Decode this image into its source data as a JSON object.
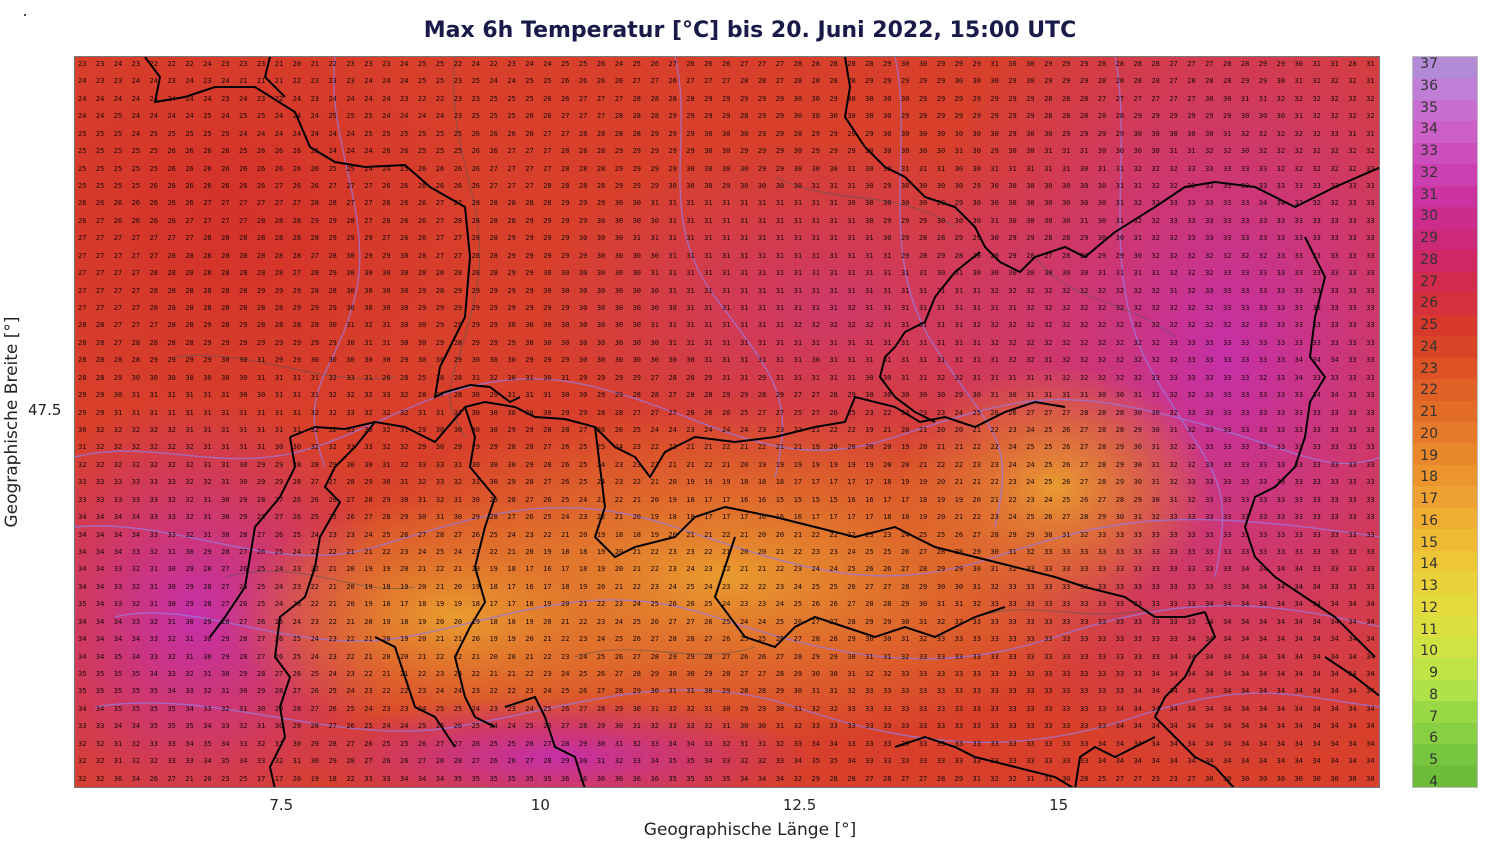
{
  "title": "Max 6h Temperatur [°C] bis 20. Juni 2022, 15:00 UTC",
  "x_axis": {
    "label": "Geographische Länge [°]",
    "ticks": [
      "7.5",
      "10",
      "12.5",
      "15"
    ],
    "tick_values": [
      7.5,
      10,
      12.5,
      15
    ],
    "range": [
      5.5,
      18.1
    ]
  },
  "y_axis": {
    "label": "Geographische Breite [°]",
    "ticks": [
      "47.5"
    ],
    "tick_values": [
      47.5
    ]
  },
  "colorbar": {
    "labels": [
      "37",
      "36",
      "35",
      "34",
      "33",
      "32",
      "31",
      "30",
      "29",
      "28",
      "27",
      "26",
      "25",
      "24",
      "23",
      "22",
      "21",
      "20",
      "19",
      "18",
      "17",
      "16",
      "15",
      "14",
      "13",
      "12",
      "11",
      "10",
      "9",
      "8",
      "7",
      "6",
      "5",
      "4"
    ],
    "colors": [
      "#b28ad6",
      "#c07ed6",
      "#c66fd0",
      "#cc5fc8",
      "#cc4ebd",
      "#cc3fb0",
      "#cc33a0",
      "#cc2c8c",
      "#cc2a78",
      "#cf2864",
      "#d22b4e",
      "#d5303b",
      "#d8392c",
      "#db4527",
      "#de5226",
      "#e06026",
      "#e36d27",
      "#e67a29",
      "#e9872b",
      "#ec942d",
      "#eea130",
      "#efae32",
      "#efbb34",
      "#eec737",
      "#ead23a",
      "#e4da3c",
      "#dbe03f",
      "#cfe343",
      "#c0e446",
      "#aee248",
      "#9ad946",
      "#88cf43",
      "#78c63f",
      "#6dbd3b"
    ]
  },
  "grid_values": {
    "rows": [
      "23 23 24 23 22 22 22 24 23 23 23 21 20 21 22 23 23 23 24 25 25 22 24 22 23 24 24 25 25 26 24 25 26 27 26 26 26 27 27 27 28 28 28 28 28 29 30 30 29 29 29 31 30 30 29 29 29 28 28 28 28 27 27 27 28 28 29 29 30 31 31 28 31",
      "24 23 23 24 24 23 24 23 24 21 21 21 22 23 23 23 24 24 24 25 25 23 25 24 24 25 25 26 26 26 26 27 27 26 27 27 27 28 28 27 28 28 28 28 29 29 29 29 29 30 30 30 29 30 29 29 29 28 28 28 28 27 28 28 28 29 29 30 31 31 32 32 31",
      "24 24 24 24 24 24 24 24 23 24 23 22 24 23 24 24 24 24 23 22 22 23 23 25 25 25 26 26 27 27 27 28 28 28 28 29 29 29 29 29 30 30 29 30 30 30 30 29 29 29 29 29 29 29 28 28 28 27 27 27 27 27 27 30 30 31 31 32 32 32 32 32 32",
      "24 24 25 24 24 24 24 25 24 25 25 24 24 24 25 25 25 24 24 24 24 23 25 25 25 26 26 27 27 27 28 28 28 29 29 29 29 28 29 29 30 30 30 30 30 30 29 29 29 29 29 29 29 29 28 28 28 28 28 29 29 29 29 29 29 30 30 30 31 32 32 32 32",
      "25 25 25 24 25 25 25 25 25 24 24 24 24 24 24 24 25 25 25 25 25 25 26 26 26 26 27 27 28 28 28 28 29 29 29 30 30 30 29 29 28 29 29 29 29 30 30 30 30 30 30 30 29 30 30 29 29 29 29 30 30 30 30 30 31 32 32 32 32 32 33 31 31",
      "25 25 25 25 25 26 26 26 26 25 26 26 26 25 24 24 24 26 26 25 25 25 26 26 27 27 27 28 28 28 29 29 29 29 29 30 30 29 29 29 30 29 29 29 29 30 30 30 30 31 30 29 30 30 31 31 31 30 30 30 30 31 31 32 32 30 32 32 32 32 32 32 32",
      "25 25 25 25 25 26 26 26 26 26 26 26 26 26 25 25 24 24 25 26 26 26 26 27 27 27 27 28 28 28 29 29 29 29 30 30 30 30 29 29 30 30 30 31 30 30 31 31 31 30 30 31 31 31 31 31 30 31 31 32 32 32 33 33 33 33 33 32 32 32 32 32 32",
      "25 25 25 25 26 26 26 26 26 26 26 27 26 26 27 27 27 26 26 26 26 26 26 27 27 27 28 28 28 28 29 29 29 30 30 30 29 30 30 30 30 31 31 31 30 29 30 30 30 30 29 30 30 30 30 30 30 30 31 31 32 32 33 33 33 33 33 33 33 33 33 33 33",
      "26 26 26 26 26 26 26 27 27 27 27 27 27 28 28 27 27 26 26 26 27 27 28 28 28 28 28 29 29 29 30 30 31 31 31 31 31 31 31 31 31 31 31 30 30 30 30 30 29 29 30 30 30 30 30 30 30 30 31 32 32 33 33 33 33 33 34 34 32 32 32 33 33",
      "26 27 26 26 26 26 27 27 27 27 28 28 28 29 29 28 27 26 26 26 27 28 28 28 28 29 29 29 29 30 30 30 30 31 31 31 31 31 31 31 31 31 31 31 30 29 29 29 30 30 30 31 30 30 30 30 31 30 31 32 32 33 33 33 33 33 33 33 33 33 33 33 33",
      "27 27 27 27 27 27 27 28 28 28 28 28 28 28 29 29 29 27 26 26 27 27 28 28 29 29 29 29 30 30 30 31 31 31 31 31 31 31 31 31 31 31 31 31 31 30 29 28 28 29 29 30 29 29 28 28 29 30 30 31 32 32 33 33 33 33 33 33 33 33 33 33 33",
      "27 27 27 27 27 28 28 28 28 28 28 28 28 27 28 30 29 29 30 28 27 27 28 28 29 29 29 29 29 30 30 30 30 31 31 31 31 31 31 31 31 31 31 31 31 31 29 28 29 28 28 29 29 28 27 28 29 29 29 30 32 32 32 32 32 32 32 33 33 33 33 33 33",
      "27 27 27 27 28 28 28 28 28 28 28 28 27 28 29 30 30 30 30 28 28 28 28 28 29 29 30 30 30 30 30 30 31 31 31 31 31 31 31 31 31 31 31 31 31 31 31 31 30 31 30 30 30 30 30 30 30 31 31 31 31 32 32 32 33 33 33 33 33 33 33 33 33",
      "27 27 27 27 28 28 28 28 28 28 29 29 29 28 28 30 30 30 30 29 28 29 29 29 29 29 30 30 30 30 30 30 30 31 31 31 31 31 31 31 31 31 31 31 31 31 31 31 31 31 31 32 32 32 32 32 32 32 32 32 32 31 32 33 33 33 33 33 33 33 33 33 33",
      "27 27 27 27 28 28 28 28 28 28 28 28 29 29 29 30 30 30 30 29 29 29 29 29 29 29 29 29 30 30 30 30 30 30 31 31 31 31 31 31 31 31 31 32 31 31 31 31 31 31 31 31 31 32 32 32 32 32 32 32 32 32 32 32 33 33 33 33 33 33 33 33 33",
      "28 28 27 27 27 28 28 29 28 29 28 28 28 28 30 31 32 31 30 30 29 29 29 29 30 30 30 30 30 30 30 30 31 31 31 31 31 31 31 31 32 32 32 32 32 31 31 31 31 31 32 32 32 32 32 32 32 32 32 32 32 32 32 32 32 32 33 33 33 33 33 33 33",
      "28 28 27 28 28 28 28 29 29 29 29 29 29 29 29 30 31 31 30 30 29 28 29 29 29 30 30 30 30 30 30 30 30 31 31 31 31 31 31 31 31 31 31 31 31 31 31 31 31 31 31 32 32 32 32 32 32 32 32 32 32 33 33 33 33 33 33 33 33 33 33 33 33",
      "28 28 28 28 29 29 29 29 30 30 31 29 29 30 30 30 30 30 29 30 30 29 30 30 30 29 29 29 30 30 30 30 30 30 30 31 31 31 31 31 31 30 31 31 31 31 31 31 31 31 31 31 32 32 31 32 32 32 32 32 32 32 33 33 33 33 33 33 34 34 34 33 33",
      "28 28 29 30 30 30 30 30 30 30 31 31 31 31 32 33 31 26 28 25 28 28 31 32 30 31 30 31 29 29 29 29 27 28 28 29 31 31 29 31 31 31 31 31 30 30 31 31 32 32 31 31 31 31 31 32 32 32 32 32 33 33 33 33 33 33 32 33 34 33 33 33 33",
      "29 29 30 31 31 31 31 31 31 30 30 31 31 31 32 32 32 33 32 28 27 28 30 29 31 31 31 30 30 29 29 28 28 27 28 28 29 29 28 29 27 27 28 29 30 30 30 30 30 29 30 31 30 31 31 31 31 30 30 31 31 32 32 33 33 33 33 33 33 34 34 33 33",
      "29 29 31 31 31 31 31 31 31 31 31 31 31 32 32 33 32 32 32 31 31 31 30 30 30 30 30 29 29 28 28 27 27 27 26 26 26 25 27 27 25 27 26 25 23 22 23 23 23 24 25 26 26 27 27 27 28 28 28 30 30 32 33 33 33 33 33 33 33 33 33 33 33",
      "30 32 32 32 32 32 31 31 31 31 31 31 31 32 32 33 33 32 31 29 30 30 30 30 29 29 28 28 27 26 26 25 24 24 23 24 24 24 23 23 22 21 22 22 19 21 20 21 20 20 21 22 23 24 25 26 27 28 28 29 30 31 32 33 33 33 33 33 33 33 33 33 33",
      "31 32 32 32 32 32 32 31 31 31 31 30 30 32 32 33 33 32 32 29 30 29 29 29 28 28 27 26 25 25 24 23 22 22 21 21 22 21 22 21 21 19 20 20 20 20 19 20 21 21 22 22 24 25 25 26 27 28 29 30 31 32 32 33 33 33 33 33 33 33 33 33 33",
      "32 32 32 32 32 32 32 31 31 30 29 29 28 28 29 30 30 31 32 33 33 31 30 30 30 29 28 26 25 24 23 23 22 21 21 22 21 20 19 19 19 19 19 19 19 20 20 21 22 22 23 23 24 24 25 26 27 28 29 30 31 32 32 33 33 33 33 33 33 33 33 33 33",
      "33 33 33 33 33 33 32 32 31 30 29 29 28 27 27 28 29 30 31 32 33 32 31 30 29 28 27 26 25 24 23 22 21 20 19 19 19 18 18 18 17 17 17 17 17 18 19 19 20 21 21 22 23 24 25 26 27 28 29 30 31 32 33 33 33 33 33 33 33 33 33 33 33",
      "33 33 33 33 33 32 32 31 30 29 28 27 26 26 26 27 28 29 30 31 32 31 30 29 28 27 26 25 24 23 22 21 20 19 18 17 17 16 16 15 15 15 15 16 16 17 17 18 19 19 20 21 22 23 24 25 26 27 28 29 30 31 32 33 33 33 33 33 33 33 33 33 33",
      "34 34 34 34 33 33 32 31 30 29 28 27 26 25 25 26 27 28 29 30 31 30 29 28 27 26 25 24 23 22 21 20 19 18 18 17 17 17 16 16 16 17 17 17 17 18 18 19 20 21 22 23 24 25 26 27 28 29 30 31 32 33 33 33 33 33 33 33 33 33 33 33 33",
      "34 34 34 34 33 33 32 31 30 28 27 26 25 24 23 23 24 25 26 27 28 27 26 25 24 23 22 21 20 19 18 18 19 20 21 21 22 21 20 20 21 22 22 22 23 23 24 25 25 26 27 28 29 29 30 31 32 33 33 33 33 33 33 33 33 33 33 33 33 33 33 33 33",
      "34 34 34 33 32 31 30 29 28 27 26 25 24 23 22 21 21 22 23 24 25 24 23 22 21 20 19 18 18 19 20 21 22 23 23 22 21 20 20 21 22 23 23 24 25 25 26 27 28 28 29 30 31 32 33 33 33 33 33 33 33 33 33 33 33 33 33 33 33 33 33 33 33",
      "34 34 33 32 31 30 29 28 27 26 25 24 23 22 21 20 19 19 20 21 22 21 20 19 18 17 16 17 18 19 20 21 22 23 24 23 22 21 21 22 23 24 24 25 26 26 27 28 29 29 30 31 32 33 33 33 33 33 33 33 33 33 33 33 33 34 34 34 34 33 33 33 33",
      "34 34 33 32 31 30 29 28 27 26 25 24 23 22 21 20 19 18 19 20 21 20 19 18 17 16 17 18 19 20 21 22 23 24 25 24 23 22 22 23 24 25 25 26 27 27 28 29 30 30 31 32 33 33 33 33 33 33 33 33 33 33 33 33 33 34 34 34 34 34 33 33 33",
      "35 34 33 32 31 30 29 28 27 26 25 24 23 22 21 20 19 18 17 18 19 19 18 17 17 18 19 20 21 22 23 24 25 26 26 25 24 23 23 24 25 26 26 27 28 28 29 30 31 31 32 33 33 33 33 33 33 33 33 33 33 33 33 34 34 34 34 34 34 34 34 34 34",
      "34 34 34 33 32 31 30 29 28 27 26 25 24 23 22 21 20 19 18 19 20 20 19 18 18 19 20 21 22 23 24 25 26 27 27 26 25 24 24 25 26 27 27 28 29 29 30 31 32 32 33 33 33 33 33 33 33 33 33 33 33 33 33 34 34 34 34 34 34 34 34 34 34",
      "34 34 34 34 33 32 31 30 29 28 27 26 25 24 23 22 21 20 19 20 21 21 20 19 19 20 21 22 23 24 25 26 27 28 28 27 26 25 25 26 27 28 28 29 30 30 31 32 33 33 33 33 33 33 33 33 33 33 33 33 33 33 34 34 34 34 34 34 34 34 34 34 34",
      "34 34 35 34 33 32 31 30 29 28 27 26 25 24 23 22 21 20 20 21 22 22 21 20 20 21 22 23 24 25 26 27 28 29 29 28 27 26 26 27 28 29 29 30 31 31 32 33 33 33 33 33 33 33 33 33 33 33 33 33 33 34 34 34 34 34 34 34 34 34 34 34 34",
      "35 35 35 35 34 33 32 31 30 29 28 27 26 25 24 23 22 21 21 22 23 23 22 21 21 22 23 24 25 26 27 28 29 30 30 29 28 27 27 28 29 30 30 31 32 32 33 33 33 33 33 33 33 33 33 33 33 33 33 33 34 34 34 34 34 34 34 34 34 34 34 34 34",
      "35 35 35 35 35 34 33 32 31 30 29 28 27 26 25 24 23 22 22 23 24 24 23 22 22 23 24 25 26 27 28 29 30 31 31 30 29 28 28 29 30 31 31 32 33 33 33 33 33 33 33 33 33 33 33 33 33 33 33 34 34 34 34 34 34 34 34 34 34 34 34 34 34",
      "34 34 35 35 35 35 34 33 32 31 30 29 28 27 26 25 24 23 23 24 25 25 24 23 23 24 25 26 27 28 29 30 31 32 32 31 30 29 29 30 31 32 32 33 33 33 33 33 33 33 33 33 33 33 33 33 33 33 34 34 34 34 34 34 34 34 34 34 34 34 34 34 34",
      "33 33 34 34 35 35 35 34 33 32 31 30 29 28 27 26 25 24 24 25 26 26 25 24 24 25 26 27 28 29 30 31 32 33 33 32 31 30 30 31 32 33 33 33 33 33 33 33 33 33 33 33 33 33 33 33 33 33 34 34 34 34 34 34 34 34 34 34 34 34 34 34 34",
      "32 32 31 32 33 33 34 35 34 33 32 31 30 29 28 27 26 25 25 26 27 27 26 25 25 26 27 28 29 30 31 32 33 34 34 33 32 31 31 32 33 34 34 33 33 33 33 33 33 33 33 33 33 33 33 33 33 34 34 34 34 34 34 34 34 34 34 34 34 34 34 34 34",
      "32 32 31 32 32 33 33 34 35 34 33 32 31 30 29 28 27 26 26 27 28 28 27 26 26 27 28 29 30 31 32 33 34 35 35 34 33 32 32 33 34 35 35 34 33 33 33 33 33 33 33 33 33 33 33 33 33 34 34 34 34 34 34 34 34 34 34 34 34 34 34 34 34",
      "32 32 36 34 26 27 21 20 23 25 17 17 20 19 18 22 33 33 34 34 34 35 35 35 35 35 35 36 36 36 36 36 36 35 35 35 35 34 34 34 32 29 28 28 27 28 27 27 28 29 31 32 32 31 31 30 28 25 27 27 23 23 27 30 30 30 30 30 30 30 30 30 30"
    ]
  }
}
